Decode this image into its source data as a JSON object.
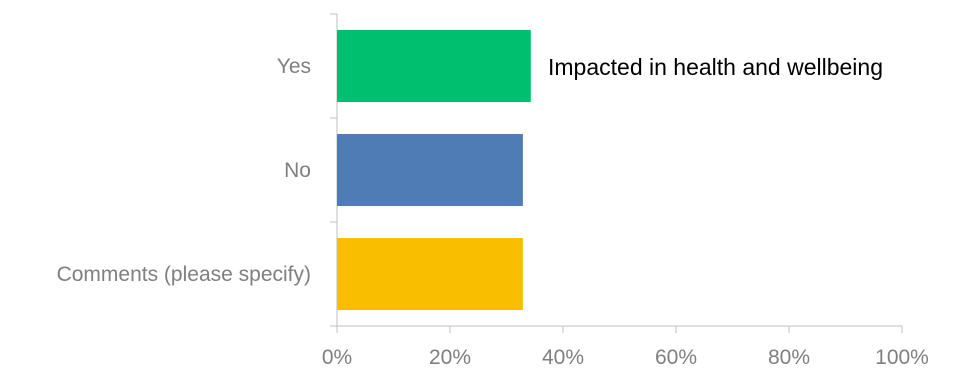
{
  "chart_data": {
    "type": "bar",
    "orientation": "horizontal",
    "categories": [
      "Yes",
      "No",
      "Comments (please specify)"
    ],
    "values": [
      34.3,
      32.9,
      32.9
    ],
    "colors": [
      "#00bf6f",
      "#507cb6",
      "#f9be00"
    ],
    "xlim": [
      0,
      100
    ],
    "x_ticks": [
      "0%",
      "20%",
      "40%",
      "60%",
      "80%",
      "100%"
    ],
    "annotation": "Impacted in health and wellbeing",
    "grid": false,
    "legend": "none"
  }
}
